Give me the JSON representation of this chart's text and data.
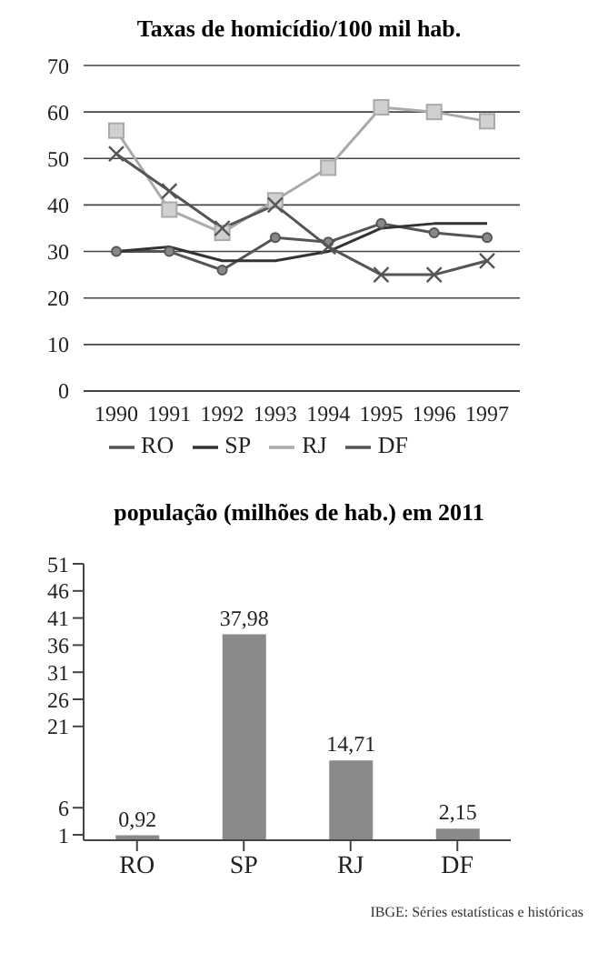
{
  "chart_data": [
    {
      "type": "line",
      "title": "Taxas de homicídio/100 mil hab.",
      "categories": [
        "1990",
        "1991",
        "1992",
        "1993",
        "1994",
        "1995",
        "1996",
        "1997"
      ],
      "series": [
        {
          "name": "RO",
          "color": "#555555",
          "marker": "cross",
          "values": [
            51,
            43,
            35,
            40,
            31,
            25,
            25,
            28
          ]
        },
        {
          "name": "SP",
          "color": "#333333",
          "marker": "none",
          "values": [
            30,
            31,
            28,
            28,
            30,
            35,
            36,
            36
          ]
        },
        {
          "name": "RJ",
          "color": "#aaaaaa",
          "marker": "square",
          "values": [
            56,
            39,
            34,
            41,
            48,
            61,
            60,
            58
          ]
        },
        {
          "name": "DF",
          "color": "#555555",
          "marker": "circle",
          "values": [
            30,
            30,
            26,
            33,
            32,
            36,
            34,
            33
          ]
        }
      ],
      "ylim": [
        0,
        70
      ],
      "yticks": [
        0,
        10,
        20,
        30,
        40,
        50,
        60,
        70
      ],
      "grid": "y",
      "legend": "bottom"
    },
    {
      "type": "bar",
      "title": "população (milhões de hab.) em 2011",
      "categories": [
        "RO",
        "SP",
        "RJ",
        "DF"
      ],
      "values": [
        0.92,
        37.98,
        14.71,
        2.15
      ],
      "value_labels": [
        "0,92",
        "37,98",
        "14,71",
        "2,15"
      ],
      "color": "#8a8a8a",
      "ylim": [
        0,
        51
      ],
      "yticks": [
        1,
        6,
        21,
        26,
        31,
        36,
        41,
        46,
        51
      ],
      "grid": false,
      "annotations": [
        "IBGE: Séries estatísticas e históricas"
      ]
    }
  ]
}
